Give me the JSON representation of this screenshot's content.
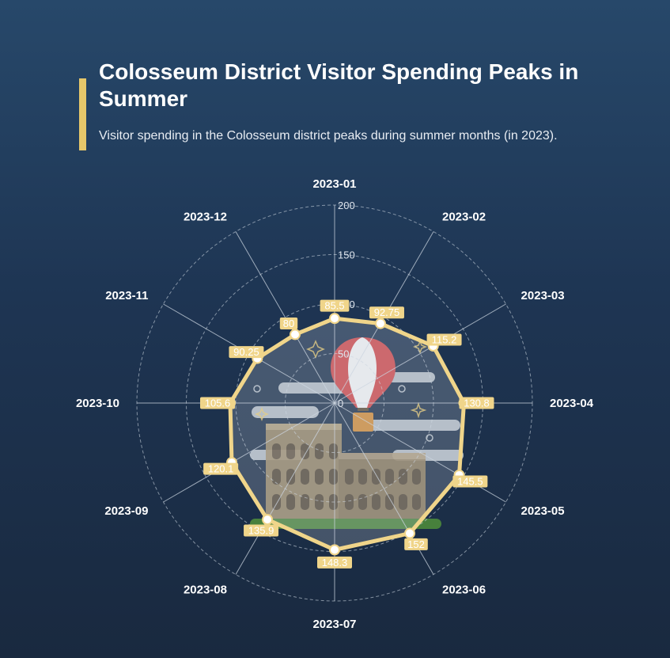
{
  "header": {
    "title": "Colosseum District Visitor Spending Peaks in Summer",
    "subtitle": "Visitor spending in the Colosseum district peaks during summer months (in 2023)."
  },
  "colors": {
    "accent": "#e6c76a",
    "series_line": "#f0d58a",
    "label_bg": "#f0d58a",
    "label_text": "#ffffff",
    "grid": "#c9d3de"
  },
  "icons": [
    "hot-air-balloon-icon",
    "colosseum-icon",
    "cloud-icon",
    "sparkle-icon"
  ],
  "chart_data": {
    "type": "radar",
    "categories": [
      "2023-01",
      "2023-02",
      "2023-03",
      "2023-04",
      "2023-05",
      "2023-06",
      "2023-07",
      "2023-08",
      "2023-09",
      "2023-10",
      "2023-11",
      "2023-12"
    ],
    "series": [
      {
        "values": [
          85.5,
          92.75,
          115.2,
          130.8,
          145.5,
          152,
          148.3,
          135.9,
          120.1,
          105.6,
          90.25,
          80
        ]
      }
    ],
    "value_labels": [
      "85.5",
      "92.75",
      "115.2",
      "130.8",
      "145.5",
      "152",
      "148.3",
      "135.9",
      "120.1",
      "105.6",
      "90.25",
      "80"
    ],
    "radial_ticks": [
      "0",
      "50",
      "100",
      "150",
      "200"
    ],
    "radial_range": [
      0,
      200
    ],
    "grid": true
  }
}
